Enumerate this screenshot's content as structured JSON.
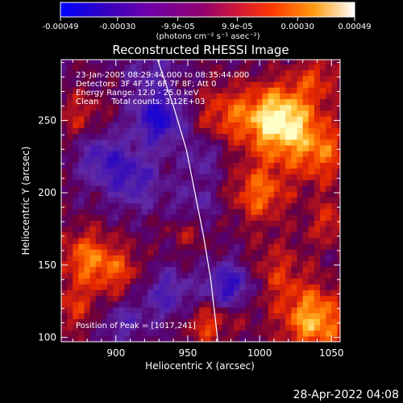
{
  "colorbar": {
    "ticks": [
      "-0.00049",
      "-0.00030",
      "-9.9e-05",
      "9.9e-05",
      "0.00030",
      "0.00049"
    ],
    "tick_values": [
      -0.00049,
      -0.0003,
      -9.9e-05,
      9.9e-05,
      0.0003,
      0.00049
    ],
    "range": [
      -0.00049,
      0.00049
    ],
    "units": "(photons cm⁻² s⁻¹ asec⁻²)",
    "colors": [
      "#0000ff",
      "#3300c0",
      "#6f00a8",
      "#c01050",
      "#ff3000",
      "#ff9010",
      "#ffff90",
      "#ffffff"
    ]
  },
  "chart_data": {
    "type": "heatmap",
    "title": "Reconstructed RHESSI Image",
    "xlabel": "Heliocentric X (arcsec)",
    "ylabel": "Heliocentric Y (arcsec)",
    "xlim": [
      862,
      1056
    ],
    "ylim": [
      97,
      292
    ],
    "x_ticks": [
      900,
      950,
      1000,
      1050
    ],
    "y_ticks": [
      100,
      150,
      200,
      250
    ],
    "info_lines": [
      "23-Jan-2005 08:29:44.000 to 08:35:44.000",
      "Detectors: 3F 4F 5F 6F 7F 8F; Att 0",
      "Energy Range: 12.0 - 25.0 keV",
      "Clean     Total counts: 3.12E+03"
    ],
    "peak_label": "Position of Peak = [1017,241]",
    "peak": [
      1017,
      241
    ],
    "limb_curve": [
      [
        929,
        292
      ],
      [
        940,
        260
      ],
      [
        949,
        230
      ],
      [
        955,
        200
      ],
      [
        961,
        170
      ],
      [
        966,
        140
      ],
      [
        971,
        97
      ]
    ],
    "grid": false,
    "blobs": [
      {
        "x": 1013,
        "y": 250,
        "v": 1.0,
        "r": 17
      },
      {
        "x": 1043,
        "y": 228,
        "v": 0.5,
        "r": 16
      },
      {
        "x": 1000,
        "y": 200,
        "v": 0.55,
        "r": 14
      },
      {
        "x": 975,
        "y": 255,
        "v": 0.4,
        "r": 14
      },
      {
        "x": 880,
        "y": 155,
        "v": 0.55,
        "r": 14
      },
      {
        "x": 903,
        "y": 145,
        "v": 0.35,
        "r": 12
      },
      {
        "x": 1038,
        "y": 112,
        "v": 0.75,
        "r": 16
      },
      {
        "x": 1010,
        "y": 145,
        "v": 0.35,
        "r": 16
      },
      {
        "x": 870,
        "y": 120,
        "v": 0.35,
        "r": 12
      },
      {
        "x": 875,
        "y": 255,
        "v": 0.3,
        "r": 12
      },
      {
        "x": 963,
        "y": 110,
        "v": 0.45,
        "r": 10
      },
      {
        "x": 950,
        "y": 175,
        "v": 0.3,
        "r": 10
      },
      {
        "x": 1050,
        "y": 180,
        "v": 0.35,
        "r": 12
      },
      {
        "x": 1040,
        "y": 280,
        "v": 0.35,
        "r": 12
      },
      {
        "x": 985,
        "y": 120,
        "v": 0.25,
        "r": 10
      },
      {
        "x": 930,
        "y": 252,
        "v": -0.8,
        "r": 12
      },
      {
        "x": 912,
        "y": 210,
        "v": -0.5,
        "r": 14
      },
      {
        "x": 980,
        "y": 135,
        "v": -0.75,
        "r": 12
      },
      {
        "x": 890,
        "y": 225,
        "v": -0.45,
        "r": 12
      },
      {
        "x": 935,
        "y": 130,
        "v": -0.45,
        "r": 12
      },
      {
        "x": 955,
        "y": 190,
        "v": -0.3,
        "r": 12
      },
      {
        "x": 925,
        "y": 285,
        "v": -0.3,
        "r": 12
      },
      {
        "x": 905,
        "y": 110,
        "v": -0.35,
        "r": 10
      },
      {
        "x": 960,
        "y": 225,
        "v": -0.3,
        "r": 10
      }
    ]
  },
  "footer": {
    "timestamp": "28-Apr-2022 04:08"
  }
}
